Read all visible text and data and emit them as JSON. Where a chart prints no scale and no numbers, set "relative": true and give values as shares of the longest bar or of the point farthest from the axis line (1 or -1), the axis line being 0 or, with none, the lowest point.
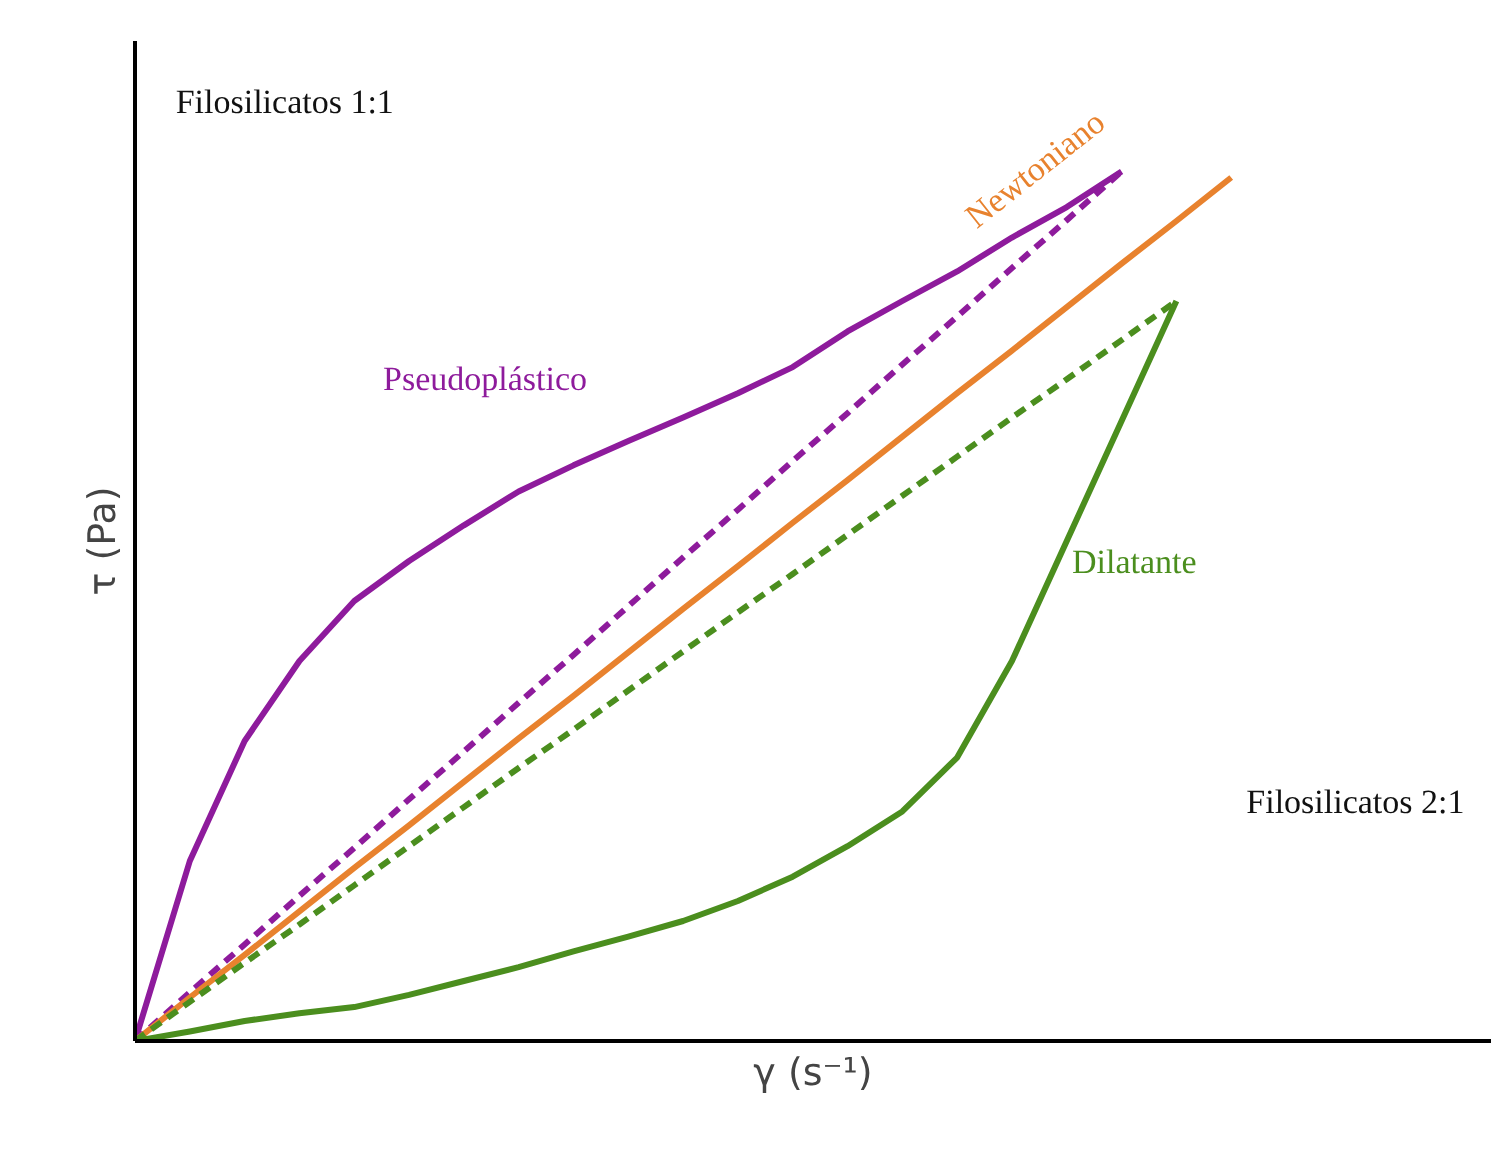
{
  "chart_data": {
    "type": "line",
    "relative": true,
    "xlabel": "γ (s⁻¹)",
    "ylabel": "τ (Pa)",
    "grid": false,
    "legend": false,
    "marker": "none",
    "annotations": [
      "Filosilicatos 1:1",
      "Filosilicatos 2:1"
    ],
    "categories": [
      null,
      null,
      null,
      null,
      null,
      null,
      null,
      null,
      null,
      null,
      null,
      null,
      null,
      null,
      null,
      null,
      null,
      null,
      null,
      null,
      null
    ],
    "series": [
      {
        "name": "Pseudoplástico",
        "color": "#8e1b9c",
        "line_style": "solid",
        "values": [
          0,
          0.207,
          0.345,
          0.437,
          0.506,
          0.552,
          0.593,
          0.632,
          0.662,
          0.69,
          0.717,
          0.745,
          0.775,
          0.816,
          0.851,
          0.885,
          0.924,
          0.959,
          1.0,
          null,
          null
        ]
      },
      {
        "color": "#8e1b9c",
        "line_style": "dashed",
        "values": [
          0,
          0.056,
          0.111,
          0.167,
          0.222,
          0.278,
          0.333,
          0.389,
          0.444,
          0.5,
          0.556,
          0.611,
          0.667,
          0.722,
          0.778,
          0.833,
          0.889,
          0.944,
          1.0,
          null,
          null
        ]
      },
      {
        "name": "Newtoniano",
        "color": "#e8822e",
        "line_style": "solid",
        "values": [
          0,
          0.05,
          0.099,
          0.149,
          0.199,
          0.248,
          0.298,
          0.348,
          0.397,
          0.447,
          0.497,
          0.546,
          0.596,
          0.645,
          0.695,
          0.745,
          0.794,
          0.844,
          0.894,
          0.943,
          0.993
        ]
      },
      {
        "name": "Dilatante",
        "color": "#4b8e1e",
        "line_style": "solid",
        "values": [
          0,
          0.011,
          0.023,
          0.032,
          0.039,
          0.053,
          0.069,
          0.085,
          0.103,
          0.12,
          0.138,
          0.161,
          0.189,
          0.224,
          0.264,
          0.326,
          0.437,
          0.575,
          0.713,
          0.851,
          null
        ]
      },
      {
        "color": "#4b8e1e",
        "line_style": "dashed",
        "values": [
          0,
          0.045,
          0.09,
          0.134,
          0.179,
          0.224,
          0.269,
          0.314,
          0.358,
          0.403,
          0.448,
          0.493,
          0.537,
          0.582,
          0.627,
          0.672,
          0.717,
          0.761,
          0.806,
          0.851,
          null
        ]
      }
    ]
  }
}
